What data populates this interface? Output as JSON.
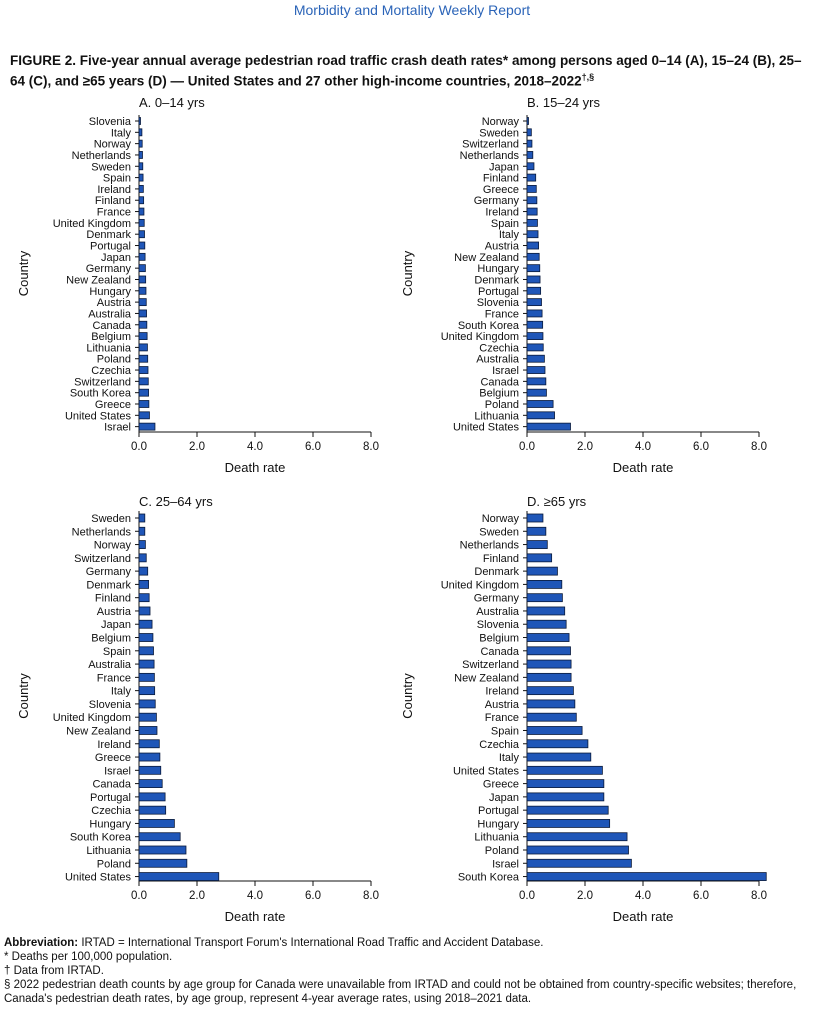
{
  "journal_title": "Morbidity and Mortality Weekly Report",
  "figure_title": "FIGURE 2. Five-year annual average pedestrian road traffic crash death rates* among persons aged 0–14 (A), 15–24 (B), 25–64 (C), and ≥65 years (D) — United States and 27 other high-income countries, 2018–2022",
  "figure_title_marks": "†,§",
  "colors": {
    "bar_fill": "#1f56b8",
    "bar_stroke": "#0a1a3a"
  },
  "chart_data": [
    {
      "type": "bar",
      "orientation": "horizontal",
      "title": "A. 0–14 yrs",
      "xlabel": "Death rate",
      "ylabel": "Country",
      "xlim": [
        0,
        8
      ],
      "xticks": [
        "0.0",
        "2.0",
        "4.0",
        "6.0",
        "8.0"
      ],
      "categories": [
        "Slovenia",
        "Italy",
        "Norway",
        "Netherlands",
        "Sweden",
        "Spain",
        "Ireland",
        "Finland",
        "France",
        "United Kingdom",
        "Denmark",
        "Portugal",
        "Japan",
        "Germany",
        "New Zealand",
        "Hungary",
        "Austria",
        "Australia",
        "Canada",
        "Belgium",
        "Lithuania",
        "Poland",
        "Czechia",
        "Switzerland",
        "South Korea",
        "Greece",
        "United States",
        "Israel"
      ],
      "values": [
        0.05,
        0.1,
        0.11,
        0.12,
        0.13,
        0.14,
        0.15,
        0.16,
        0.17,
        0.18,
        0.19,
        0.2,
        0.21,
        0.22,
        0.23,
        0.24,
        0.25,
        0.26,
        0.27,
        0.28,
        0.29,
        0.3,
        0.31,
        0.32,
        0.33,
        0.34,
        0.36,
        0.55
      ]
    },
    {
      "type": "bar",
      "orientation": "horizontal",
      "title": "B. 15–24 yrs",
      "xlabel": "Death rate",
      "ylabel": "Country",
      "xlim": [
        0,
        8
      ],
      "xticks": [
        "0.0",
        "2.0",
        "4.0",
        "6.0",
        "8.0"
      ],
      "categories": [
        "Norway",
        "Sweden",
        "Switzerland",
        "Netherlands",
        "Japan",
        "Finland",
        "Greece",
        "Germany",
        "Ireland",
        "Spain",
        "Italy",
        "Austria",
        "New Zealand",
        "Hungary",
        "Denmark",
        "Portugal",
        "Slovenia",
        "France",
        "South Korea",
        "United Kingdom",
        "Czechia",
        "Australia",
        "Israel",
        "Canada",
        "Belgium",
        "Poland",
        "Lithuania",
        "United States"
      ],
      "values": [
        0.05,
        0.15,
        0.17,
        0.2,
        0.24,
        0.3,
        0.32,
        0.34,
        0.35,
        0.36,
        0.38,
        0.4,
        0.42,
        0.44,
        0.45,
        0.47,
        0.5,
        0.52,
        0.54,
        0.55,
        0.56,
        0.6,
        0.62,
        0.65,
        0.67,
        0.9,
        0.95,
        1.5
      ]
    },
    {
      "type": "bar",
      "orientation": "horizontal",
      "title": "C. 25–64 yrs",
      "xlabel": "Death rate",
      "ylabel": "Country",
      "xlim": [
        0,
        8
      ],
      "xticks": [
        "0.0",
        "2.0",
        "4.0",
        "6.0",
        "8.0"
      ],
      "categories": [
        "Sweden",
        "Netherlands",
        "Norway",
        "Switzerland",
        "Germany",
        "Denmark",
        "Finland",
        "Austria",
        "Japan",
        "Belgium",
        "Spain",
        "Australia",
        "France",
        "Italy",
        "Slovenia",
        "United Kingdom",
        "New Zealand",
        "Ireland",
        "Greece",
        "Israel",
        "Canada",
        "Portugal",
        "Czechia",
        "Hungary",
        "South Korea",
        "Lithuania",
        "Poland",
        "United States"
      ],
      "values": [
        0.2,
        0.2,
        0.22,
        0.25,
        0.3,
        0.33,
        0.35,
        0.38,
        0.45,
        0.48,
        0.5,
        0.52,
        0.53,
        0.54,
        0.56,
        0.6,
        0.62,
        0.7,
        0.72,
        0.75,
        0.8,
        0.9,
        0.92,
        1.22,
        1.42,
        1.62,
        1.65,
        2.75
      ]
    },
    {
      "type": "bar",
      "orientation": "horizontal",
      "title": "D. ≥65 yrs",
      "xlabel": "Death rate",
      "ylabel": "Country",
      "xlim": [
        0,
        8
      ],
      "xticks": [
        "0.0",
        "2.0",
        "4.0",
        "6.0",
        "8.0"
      ],
      "categories": [
        "Norway",
        "Sweden",
        "Netherlands",
        "Finland",
        "Denmark",
        "United Kingdom",
        "Germany",
        "Australia",
        "Slovenia",
        "Belgium",
        "Canada",
        "Switzerland",
        "New Zealand",
        "Ireland",
        "Austria",
        "France",
        "Spain",
        "Czechia",
        "Italy",
        "United States",
        "Greece",
        "Japan",
        "Portugal",
        "Hungary",
        "Lithuania",
        "Poland",
        "Israel",
        "South Korea"
      ],
      "values": [
        0.55,
        0.65,
        0.7,
        0.85,
        1.05,
        1.2,
        1.22,
        1.3,
        1.35,
        1.45,
        1.5,
        1.52,
        1.52,
        1.6,
        1.65,
        1.7,
        1.9,
        2.1,
        2.2,
        2.6,
        2.65,
        2.65,
        2.8,
        2.85,
        3.45,
        3.5,
        3.6,
        8.25
      ]
    }
  ],
  "footnotes": {
    "abbrev_label": "Abbreviation:",
    "abbrev_text": " IRTAD = International Transport Forum's International Road Traffic and Accident Database.",
    "star": "* Deaths per 100,000 population.",
    "dagger": "† Data from IRTAD.",
    "section": "§ 2022 pedestrian death counts by age group for Canada were unavailable from IRTAD and could not be obtained from country-specific websites; therefore, Canada's pedestrian death rates, by age group, represent 4-year average rates, using 2018–2021 data."
  }
}
